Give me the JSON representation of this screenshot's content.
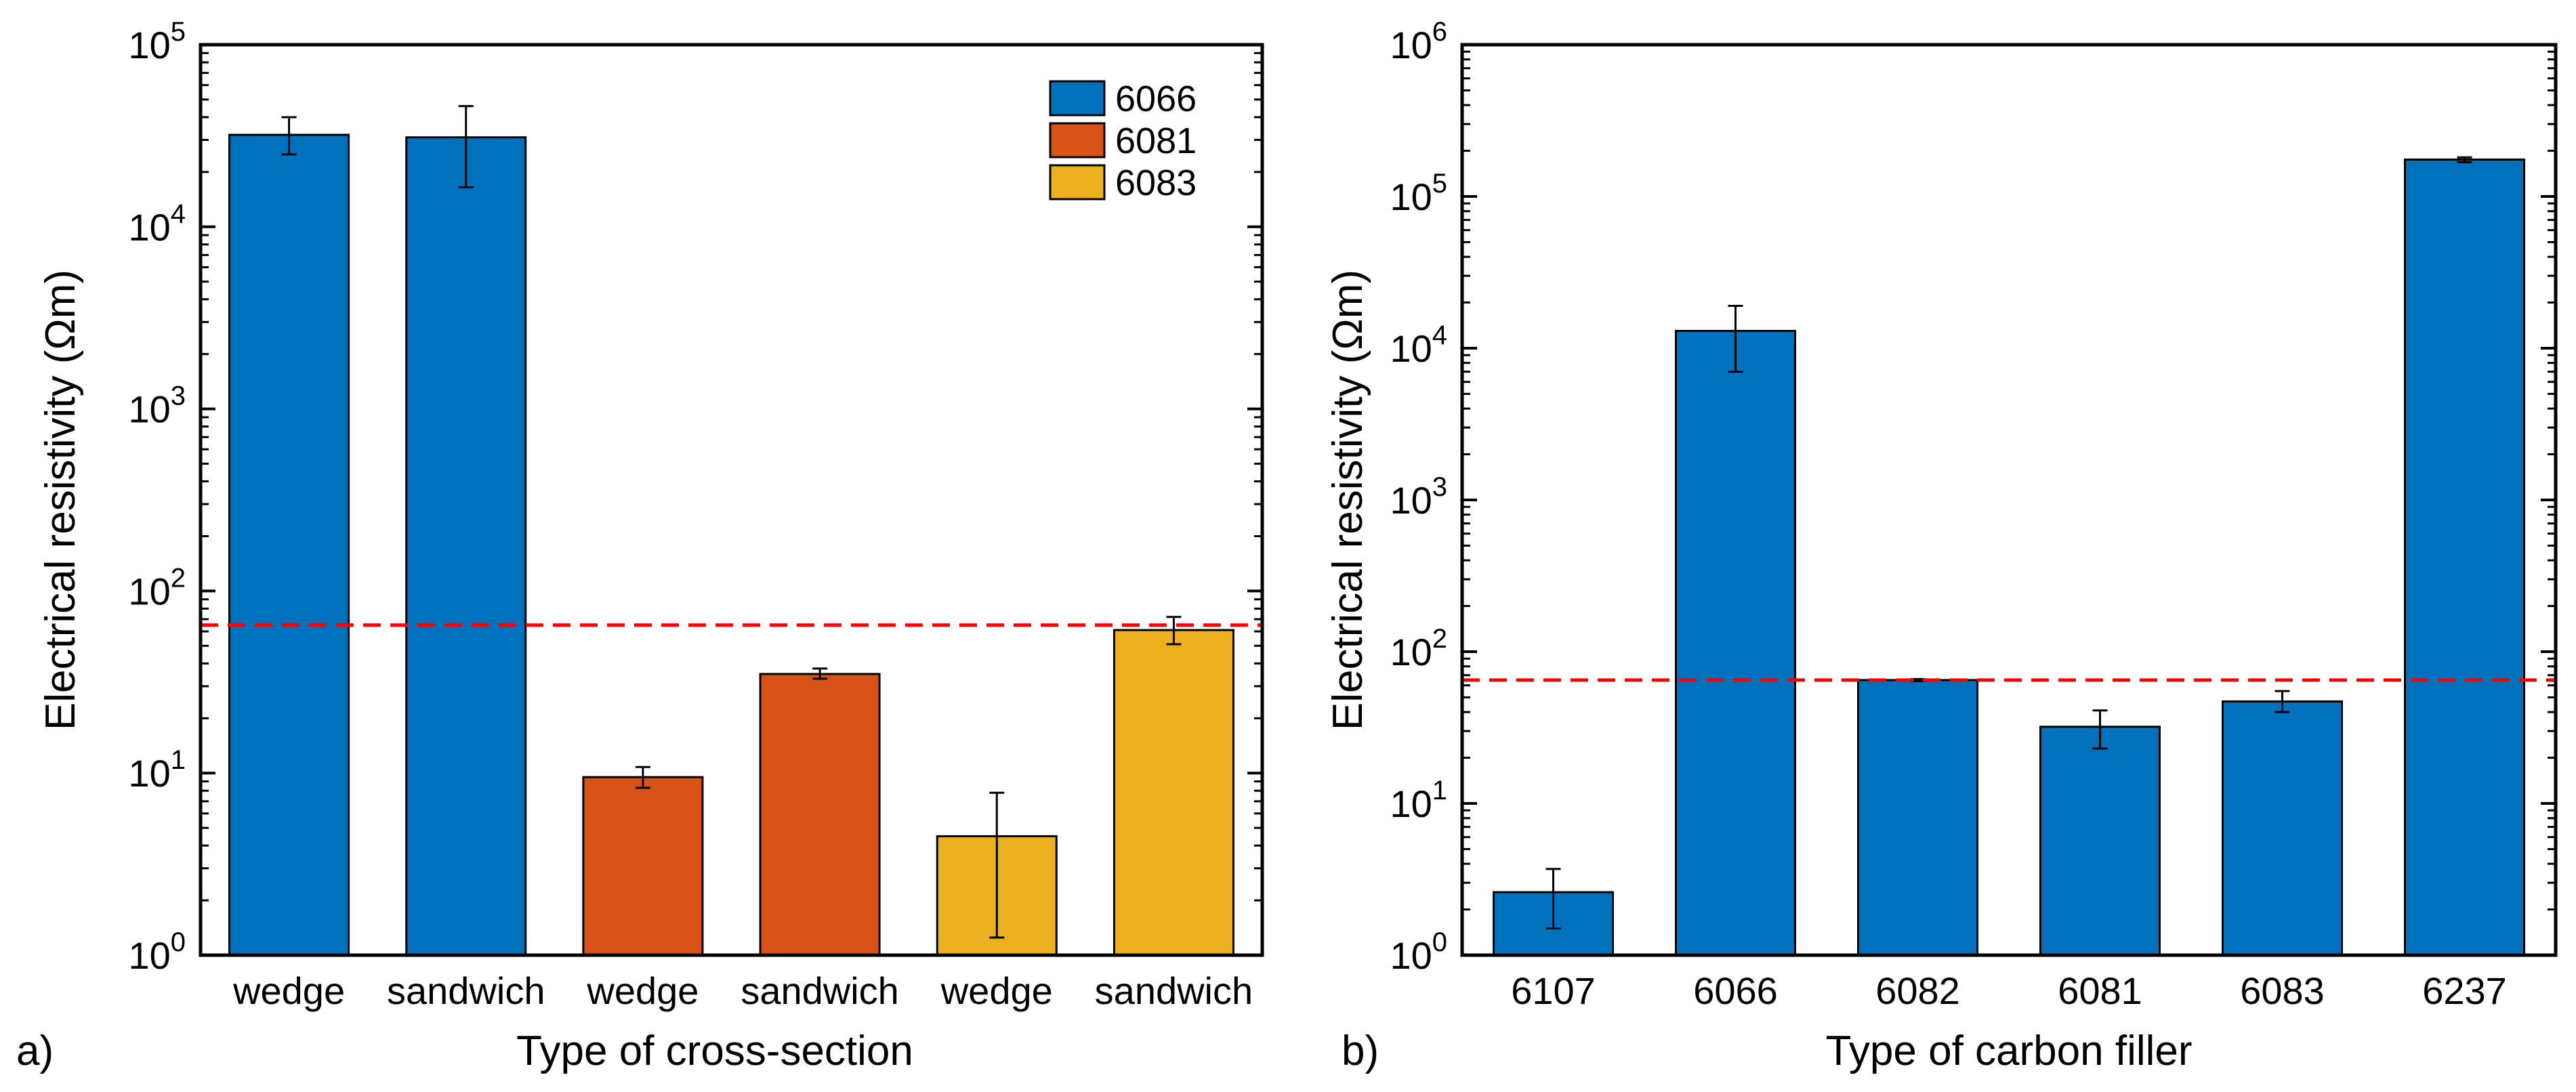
{
  "figure": {
    "panels": [
      "a)",
      "b)"
    ]
  },
  "chart_data": [
    {
      "type": "bar",
      "panel_label": "a)",
      "title": "",
      "xlabel": "Type of cross-section",
      "ylabel": "Electrical resistivity (Ωm)",
      "yscale": "log",
      "ylim": [
        1,
        100000
      ],
      "y_ticks": [
        {
          "base": "10",
          "exp": "0"
        },
        {
          "base": "10",
          "exp": "1"
        },
        {
          "base": "10",
          "exp": "2"
        },
        {
          "base": "10",
          "exp": "3"
        },
        {
          "base": "10",
          "exp": "4"
        },
        {
          "base": "10",
          "exp": "5"
        }
      ],
      "categories": [
        "wedge",
        "sandwich",
        "wedge",
        "sandwich",
        "wedge",
        "sandwich"
      ],
      "values": [
        32000,
        31000,
        9.5,
        35,
        4.5,
        61
      ],
      "errors": [
        {
          "low": 25000,
          "high": 40000
        },
        {
          "low": 16500,
          "high": 46000
        },
        {
          "low": 8.3,
          "high": 10.8
        },
        {
          "low": 33,
          "high": 37.5
        },
        {
          "low": 1.25,
          "high": 7.8
        },
        {
          "low": 51,
          "high": 72
        }
      ],
      "bar_series": [
        "6066",
        "6066",
        "6081",
        "6081",
        "6083",
        "6083"
      ],
      "legend": {
        "position": "top-right",
        "entries": [
          {
            "label": "6066",
            "color": "#0072BD"
          },
          {
            "label": "6081",
            "color": "#D95319"
          },
          {
            "label": "6083",
            "color": "#EDB120"
          }
        ]
      },
      "reference_line": {
        "value": 65,
        "color": "#FF0000",
        "style": "dashed"
      }
    },
    {
      "type": "bar",
      "panel_label": "b)",
      "title": "",
      "xlabel": "Type of carbon filler",
      "ylabel": "Electrical resistivity (Ωm)",
      "yscale": "log",
      "ylim": [
        1,
        1000000
      ],
      "y_ticks": [
        {
          "base": "10",
          "exp": "0"
        },
        {
          "base": "10",
          "exp": "1"
        },
        {
          "base": "10",
          "exp": "2"
        },
        {
          "base": "10",
          "exp": "3"
        },
        {
          "base": "10",
          "exp": "4"
        },
        {
          "base": "10",
          "exp": "5"
        },
        {
          "base": "10",
          "exp": "6"
        }
      ],
      "categories": [
        "6107",
        "6066",
        "6082",
        "6081",
        "6083",
        "6237"
      ],
      "values": [
        2.6,
        13000,
        65,
        32,
        47,
        175000
      ],
      "errors": [
        {
          "low": 1.5,
          "high": 3.7
        },
        {
          "low": 7000,
          "high": 19000
        },
        {
          "low": 64,
          "high": 66
        },
        {
          "low": 23,
          "high": 41
        },
        {
          "low": 40,
          "high": 55
        },
        {
          "low": 168000,
          "high": 181000
        }
      ],
      "bar_color": "#0072BD",
      "reference_line": {
        "value": 65,
        "color": "#FF0000",
        "style": "dashed"
      }
    }
  ]
}
